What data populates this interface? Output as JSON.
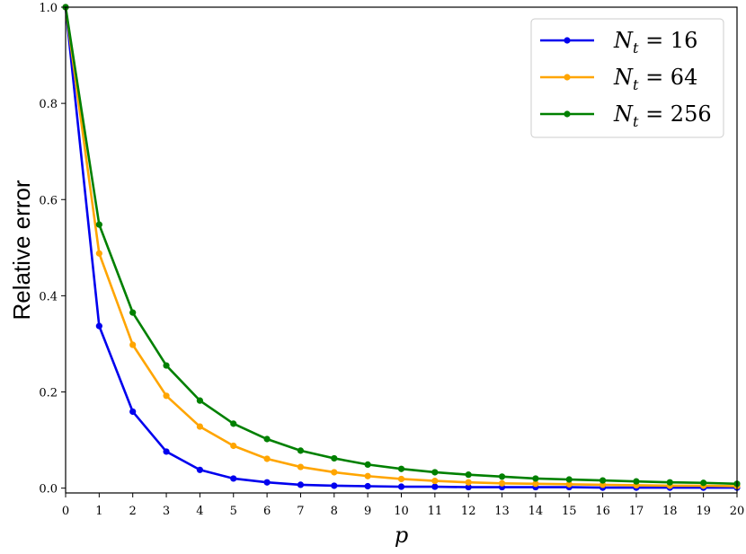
{
  "chart_data": {
    "type": "line",
    "xlabel": "p",
    "ylabel": "Relative error",
    "xlim": [
      0,
      20
    ],
    "ylim": [
      -0.01,
      1.0
    ],
    "x": [
      0,
      1,
      2,
      3,
      4,
      5,
      6,
      7,
      8,
      9,
      10,
      11,
      12,
      13,
      14,
      15,
      16,
      17,
      18,
      19,
      20
    ],
    "xticks": [
      "0",
      "1",
      "2",
      "3",
      "4",
      "5",
      "6",
      "7",
      "8",
      "9",
      "10",
      "11",
      "12",
      "13",
      "14",
      "15",
      "16",
      "17",
      "18",
      "19",
      "20"
    ],
    "yticks": [
      "0.0",
      "0.2",
      "0.4",
      "0.6",
      "0.8",
      "1.0"
    ],
    "ytick_values": [
      0.0,
      0.2,
      0.4,
      0.6,
      0.8,
      1.0
    ],
    "grid": false,
    "legend_position": "top-right",
    "series": [
      {
        "name": "N_t = 16",
        "legend_main": "N",
        "legend_sub": "t",
        "legend_rest": " = 16",
        "color": "#0000ee",
        "values": [
          1.0,
          0.337,
          0.159,
          0.076,
          0.038,
          0.02,
          0.012,
          0.007,
          0.005,
          0.004,
          0.003,
          0.003,
          0.002,
          0.002,
          0.002,
          0.002,
          0.001,
          0.001,
          0.001,
          0.001,
          0.001
        ]
      },
      {
        "name": "N_t = 64",
        "legend_main": "N",
        "legend_sub": "t",
        "legend_rest": " = 64",
        "color": "#ffa500",
        "values": [
          1.0,
          0.488,
          0.298,
          0.192,
          0.128,
          0.088,
          0.061,
          0.044,
          0.033,
          0.025,
          0.019,
          0.015,
          0.012,
          0.01,
          0.009,
          0.008,
          0.007,
          0.006,
          0.005,
          0.005,
          0.004
        ]
      },
      {
        "name": "N_t = 256",
        "legend_main": "N",
        "legend_sub": "t",
        "legend_rest": " = 256",
        "color": "#008000",
        "values": [
          1.0,
          0.548,
          0.365,
          0.255,
          0.182,
          0.134,
          0.102,
          0.078,
          0.062,
          0.049,
          0.04,
          0.033,
          0.028,
          0.024,
          0.02,
          0.018,
          0.016,
          0.014,
          0.012,
          0.011,
          0.009
        ]
      }
    ]
  }
}
